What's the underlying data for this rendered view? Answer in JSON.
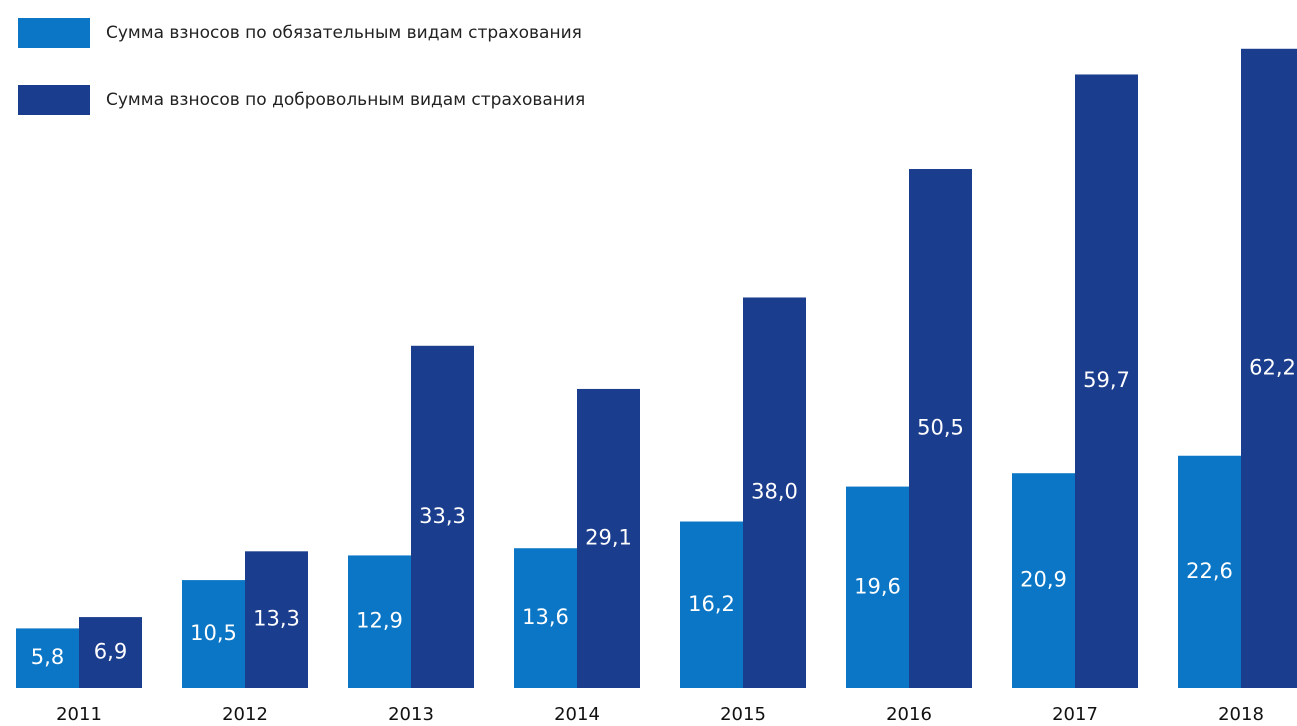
{
  "chart_data": {
    "type": "bar",
    "categories": [
      "2011",
      "2012",
      "2013",
      "2014",
      "2015",
      "2016",
      "2017",
      "2018"
    ],
    "series": [
      {
        "name": "Сумма взносов по обязательным видам страхования",
        "color": "#0b76c5",
        "values": [
          5.8,
          10.5,
          12.9,
          13.6,
          16.2,
          19.6,
          20.9,
          22.6
        ],
        "value_labels": [
          "5,8",
          "10,5",
          "12,9",
          "13,6",
          "16,2",
          "19,6",
          "20,9",
          "22,6"
        ]
      },
      {
        "name": "Сумма взносов по добровольным видам страхования",
        "color": "#1b3d8d",
        "values": [
          6.9,
          13.3,
          33.3,
          29.1,
          38.0,
          50.5,
          59.7,
          62.2
        ],
        "value_labels": [
          "6,9",
          "13,3",
          "33,3",
          "29,1",
          "38,0",
          "50,5",
          "59,7",
          "62,2"
        ]
      }
    ],
    "ylim": [
      0,
      65
    ]
  }
}
